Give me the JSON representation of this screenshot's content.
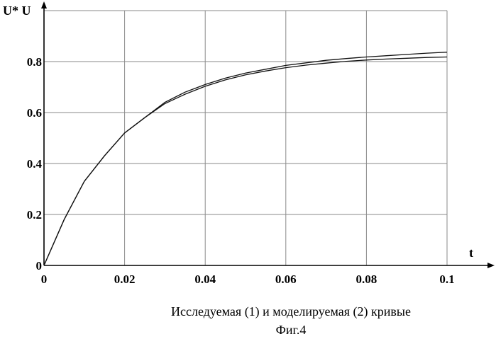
{
  "chart_data": {
    "type": "line",
    "xlabel": "t",
    "ylabel": "U* U",
    "xlim": [
      0,
      0.1
    ],
    "ylim": [
      0,
      1.0
    ],
    "x_ticks": [
      "0",
      "0.02",
      "0.04",
      "0.06",
      "0.08",
      "0.1"
    ],
    "y_ticks": [
      "0",
      "0.2",
      "0.4",
      "0.6",
      "0.8"
    ],
    "grid": true,
    "series": [
      {
        "x": [
          0,
          0.005,
          0.01,
          0.015,
          0.02,
          0.025,
          0.03,
          0.035,
          0.04,
          0.045,
          0.05,
          0.055,
          0.06,
          0.065,
          0.07,
          0.075,
          0.08,
          0.085,
          0.09,
          0.095,
          0.1
        ],
        "values": [
          0.0,
          0.18,
          0.33,
          0.43,
          0.52,
          0.58,
          0.64,
          0.68,
          0.71,
          0.735,
          0.755,
          0.77,
          0.785,
          0.795,
          0.805,
          0.812,
          0.818,
          0.823,
          0.828,
          0.833,
          0.837
        ]
      },
      {
        "x": [
          0,
          0.005,
          0.01,
          0.015,
          0.02,
          0.025,
          0.03,
          0.035,
          0.04,
          0.045,
          0.05,
          0.055,
          0.06,
          0.065,
          0.07,
          0.075,
          0.08,
          0.085,
          0.09,
          0.095,
          0.1
        ],
        "values": [
          0.0,
          0.18,
          0.33,
          0.43,
          0.52,
          0.58,
          0.635,
          0.672,
          0.703,
          0.728,
          0.748,
          0.763,
          0.776,
          0.786,
          0.794,
          0.801,
          0.806,
          0.81,
          0.813,
          0.816,
          0.818
        ]
      }
    ]
  },
  "caption": {
    "line1": "Исследуемая (1) и моделируемая (2) кривые",
    "line2": "Фиг.4"
  }
}
